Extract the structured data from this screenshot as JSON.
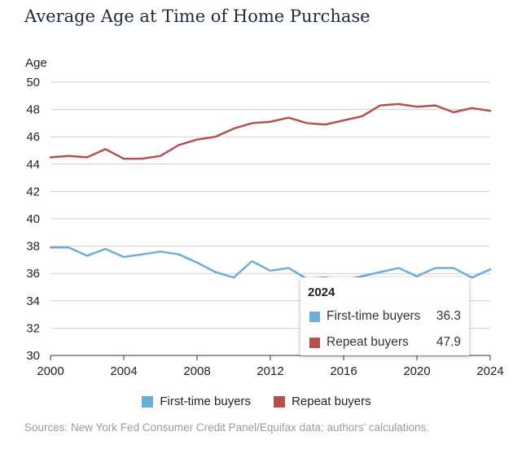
{
  "chart_data": {
    "type": "line",
    "title": "Average Age at Time of Home Purchase",
    "ylabel": "Age",
    "xlabel": "",
    "xlim": [
      2000,
      2024
    ],
    "ylim": [
      30,
      50
    ],
    "x_ticks": [
      2000,
      2004,
      2008,
      2012,
      2016,
      2020,
      2024
    ],
    "y_ticks": [
      30,
      32,
      34,
      36,
      38,
      40,
      42,
      44,
      46,
      48,
      50
    ],
    "grid": "horizontal",
    "legend_position": "bottom",
    "x": [
      2000,
      2001,
      2002,
      2003,
      2004,
      2005,
      2006,
      2007,
      2008,
      2009,
      2010,
      2011,
      2012,
      2013,
      2014,
      2015,
      2016,
      2017,
      2018,
      2019,
      2020,
      2021,
      2022,
      2023,
      2024
    ],
    "series": [
      {
        "name": "First-time buyers",
        "color": "#6baed6",
        "values": [
          37.9,
          37.9,
          37.3,
          37.8,
          37.2,
          37.4,
          37.6,
          37.4,
          36.8,
          36.1,
          35.7,
          36.9,
          36.2,
          36.4,
          35.6,
          35.7,
          35.5,
          35.8,
          36.1,
          36.4,
          35.8,
          36.4,
          36.4,
          35.7,
          36.3
        ]
      },
      {
        "name": "Repeat buyers",
        "color": "#b5504f",
        "values": [
          44.5,
          44.6,
          44.5,
          45.1,
          44.4,
          44.4,
          44.6,
          45.4,
          45.8,
          46.0,
          46.6,
          47.0,
          47.1,
          47.4,
          47.0,
          46.9,
          47.2,
          47.5,
          48.3,
          48.4,
          48.2,
          48.3,
          47.8,
          48.1,
          47.9
        ]
      }
    ],
    "tooltip": {
      "year": "2024",
      "rows": [
        {
          "name": "First-time buyers",
          "value": "36.3",
          "color": "#6baed6"
        },
        {
          "name": "Repeat buyers",
          "value": "47.9",
          "color": "#b5504f"
        }
      ]
    }
  },
  "source": "Sources: New York Fed Consumer Credit Panel/Equifax data; authors’ calculations."
}
